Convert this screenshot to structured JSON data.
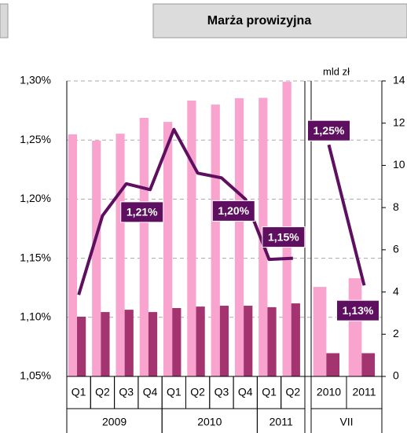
{
  "chart_data": {
    "type": "bar_line",
    "title": "Marża prowizyjna",
    "y2_label": "mld zł",
    "categories": [
      "Q1",
      "Q2",
      "Q3",
      "Q4",
      "Q1",
      "Q2",
      "Q3",
      "Q4",
      "Q1",
      "Q2",
      null,
      "2010",
      "2011"
    ],
    "groups": [
      {
        "label": "2009",
        "count": 4
      },
      {
        "label": "2010",
        "count": 4
      },
      {
        "label": "2011",
        "count": 2
      },
      {
        "label": "VII",
        "count": 2
      }
    ],
    "ylim": [
      1.05,
      1.3
    ],
    "yticks": [
      {
        "value": 1.05,
        "label": "1,05%"
      },
      {
        "value": 1.1,
        "label": "1,10%"
      },
      {
        "value": 1.15,
        "label": "1,15%"
      },
      {
        "value": 1.2,
        "label": "1,20%"
      },
      {
        "value": 1.25,
        "label": "1,25%"
      },
      {
        "value": 1.3,
        "label": "1,30%"
      }
    ],
    "y2lim": [
      0,
      14
    ],
    "y2ticks": [
      0,
      2,
      4,
      6,
      8,
      10,
      12,
      14
    ],
    "grid": true,
    "series": [
      {
        "type": "bar",
        "axis": "y2",
        "color": "#f9a3cf",
        "values": [
          11.47,
          11.17,
          11.5,
          12.25,
          12.06,
          13.07,
          12.88,
          13.18,
          13.2,
          13.96,
          null,
          4.24,
          4.65
        ]
      },
      {
        "type": "bar",
        "axis": "y2",
        "color": "#a33470",
        "values": [
          2.83,
          3.05,
          3.16,
          3.05,
          3.24,
          3.31,
          3.35,
          3.35,
          3.28,
          3.46,
          null,
          1.1,
          1.1
        ]
      },
      {
        "type": "line",
        "axis": "y",
        "color": "#5e0f60",
        "values": [
          1.119,
          1.186,
          1.213,
          1.208,
          1.259,
          1.222,
          1.218,
          1.2,
          1.149,
          1.15,
          null,
          1.246,
          1.127
        ],
        "value_labels": [
          null,
          null,
          "1,21%",
          null,
          null,
          null,
          null,
          "1,20%",
          null,
          "1,15%",
          null,
          "1,25%",
          "1,13%"
        ]
      }
    ]
  }
}
